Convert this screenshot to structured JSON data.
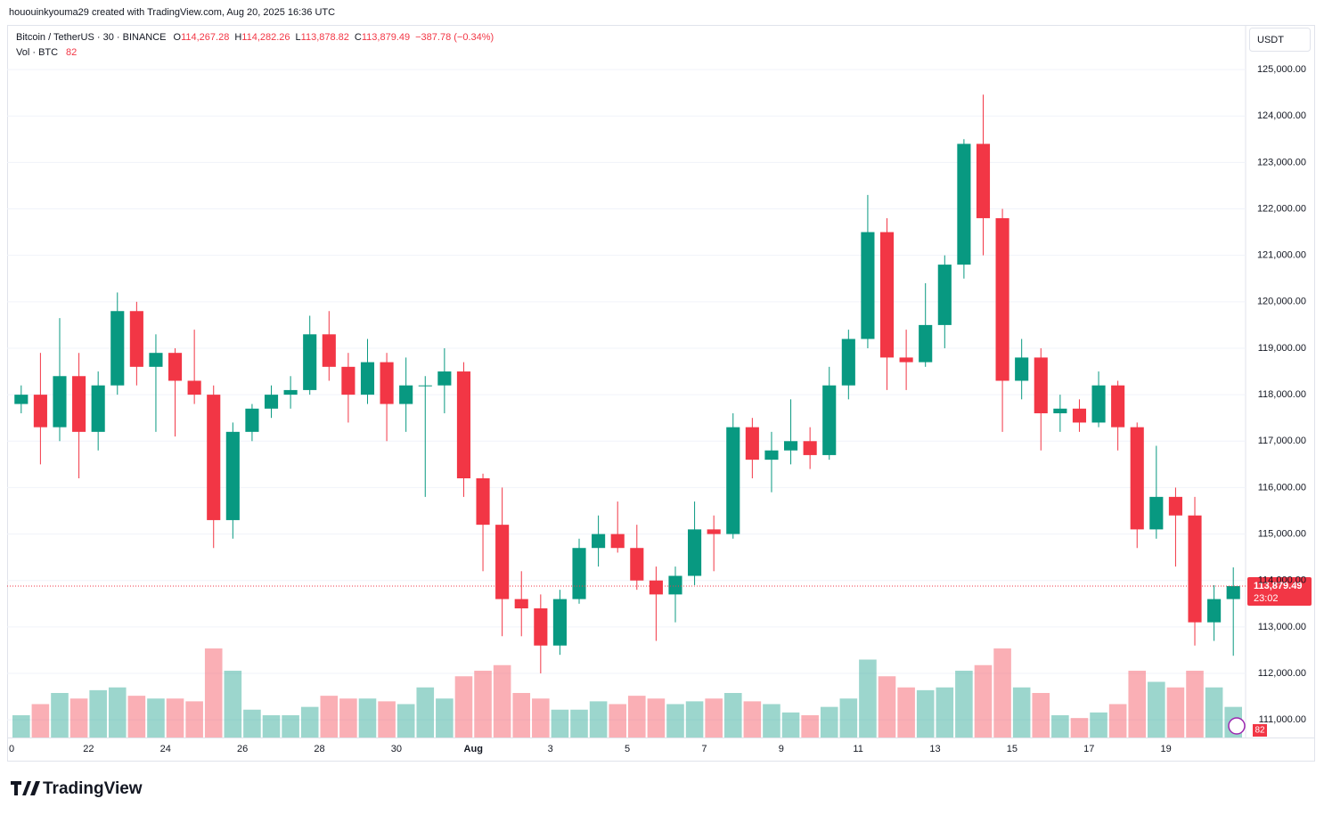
{
  "header": "hououinkyouma29 created with TradingView.com, Aug 20, 2025 16:36 UTC",
  "logo": "TradingView",
  "currency_button": "USDT",
  "chart_data": {
    "type": "candlestick",
    "title": "Bitcoin / TetherUS · 30 · BINANCE",
    "ohlc_legend": [
      {
        "key": "O",
        "text": "114,267.28"
      },
      {
        "key": "H",
        "text": "114,282.26"
      },
      {
        "key": "L",
        "text": "113,878.82"
      },
      {
        "key": "C",
        "text": "113,879.49"
      }
    ],
    "change": "−387.78 (−0.34%)",
    "volume_legend": "Vol · BTC",
    "volume_current": "82",
    "last_price": {
      "value": 113879.49,
      "label": "113,879.49"
    },
    "countdown": "23:02",
    "up_color": "#089981",
    "down_color": "#f23645",
    "grid": true,
    "categories": [
      "0",
      null,
      null,
      null,
      "22",
      null,
      null,
      null,
      "24",
      null,
      null,
      null,
      "26",
      null,
      null,
      null,
      "28",
      null,
      null,
      null,
      "30",
      null,
      null,
      null,
      "Aug",
      null,
      null,
      null,
      "3",
      null,
      null,
      null,
      "5",
      null,
      null,
      null,
      "7",
      null,
      null,
      null,
      "9",
      null,
      null,
      null,
      "11",
      null,
      null,
      null,
      "13",
      null,
      null,
      null,
      "15",
      null,
      null,
      null,
      "17",
      null,
      null,
      null,
      "19",
      null,
      null,
      null
    ],
    "open": [
      117800,
      118000,
      117300,
      118400,
      117200,
      118200,
      119800,
      118600,
      118900,
      118300,
      118000,
      115300,
      117200,
      117700,
      118000,
      118100,
      119300,
      118600,
      118000,
      118700,
      117800,
      118200,
      118200,
      118500,
      116200,
      115200,
      113600,
      113400,
      112600,
      113600,
      114700,
      115000,
      114700,
      114000,
      113700,
      114100,
      115100,
      115000,
      117300,
      116600,
      116800,
      117000,
      116700,
      118200,
      119200,
      121500,
      118800,
      118700,
      119500,
      120800,
      123400,
      121800,
      118300,
      118800,
      117600,
      117700,
      117400,
      118200,
      117300,
      115100,
      115800,
      115400,
      113100,
      113600
    ],
    "high": [
      118200,
      118900,
      119650,
      118900,
      118500,
      120200,
      120000,
      119300,
      119000,
      119400,
      118200,
      117400,
      117800,
      118200,
      118400,
      119700,
      119800,
      118900,
      119200,
      118900,
      118800,
      118400,
      119000,
      118700,
      116300,
      116000,
      114200,
      113700,
      113800,
      114900,
      115400,
      115700,
      115200,
      114300,
      114300,
      115700,
      115400,
      117600,
      117500,
      117200,
      117900,
      117300,
      118600,
      119400,
      122300,
      121800,
      119400,
      120400,
      121000,
      123500,
      124460,
      122000,
      119200,
      119000,
      118000,
      117900,
      118500,
      118300,
      117400,
      116900,
      116000,
      115800,
      113900,
      114282.26
    ],
    "low": [
      117600,
      116500,
      117000,
      116200,
      116800,
      118000,
      118200,
      117200,
      117100,
      117800,
      114700,
      114900,
      117000,
      117500,
      117700,
      118000,
      118300,
      117400,
      117800,
      117000,
      117200,
      115800,
      117600,
      115800,
      114200,
      112800,
      112800,
      112000,
      112400,
      113500,
      114300,
      114600,
      113800,
      112700,
      113100,
      113900,
      114200,
      114900,
      116200,
      115900,
      116500,
      116400,
      116600,
      117900,
      119000,
      118100,
      118100,
      118600,
      119000,
      120500,
      121000,
      117200,
      117900,
      116800,
      117200,
      117200,
      117300,
      116800,
      114700,
      114900,
      114300,
      112600,
      112700,
      112380
    ],
    "close": [
      118000,
      117300,
      118400,
      117200,
      118200,
      119800,
      118600,
      118900,
      118300,
      118000,
      115300,
      117200,
      117700,
      118000,
      118100,
      119300,
      118600,
      118000,
      118700,
      117800,
      118200,
      118200,
      118500,
      116200,
      115200,
      113600,
      113400,
      112600,
      113600,
      114700,
      115000,
      114700,
      114000,
      113700,
      114100,
      115100,
      115000,
      117300,
      116600,
      116800,
      117000,
      116700,
      118200,
      119200,
      121500,
      118800,
      118700,
      119500,
      120800,
      123400,
      121800,
      118300,
      118800,
      117600,
      117700,
      117400,
      118200,
      117300,
      115100,
      115800,
      115400,
      113100,
      113600,
      113879.49
    ],
    "volume": [
      4000,
      6000,
      8000,
      7000,
      8500,
      9000,
      7500,
      7000,
      7000,
      6500,
      16000,
      12000,
      5000,
      4000,
      4000,
      5500,
      7500,
      7000,
      7000,
      6500,
      6000,
      9000,
      7000,
      11000,
      12000,
      13000,
      8000,
      7000,
      5000,
      5000,
      6500,
      6000,
      7500,
      7000,
      6000,
      6500,
      7000,
      8000,
      6500,
      6000,
      4500,
      4000,
      5500,
      7000,
      14000,
      11000,
      9000,
      8500,
      9000,
      12000,
      13000,
      16000,
      9000,
      8000,
      4000,
      3500,
      4500,
      6000,
      12000,
      10000,
      9000,
      12000,
      9000,
      5500
    ],
    "ylim": [
      110620,
      125960
    ],
    "yticks": [
      {
        "value": 111000,
        "label": "111,000.00"
      },
      {
        "value": 112000,
        "label": "112,000.00"
      },
      {
        "value": 113000,
        "label": "113,000.00"
      },
      {
        "value": 114000,
        "label": "114,000.00"
      },
      {
        "value": 115000,
        "label": "115,000.00"
      },
      {
        "value": 116000,
        "label": "116,000.00"
      },
      {
        "value": 117000,
        "label": "117,000.00"
      },
      {
        "value": 118000,
        "label": "118,000.00"
      },
      {
        "value": 119000,
        "label": "119,000.00"
      },
      {
        "value": 120000,
        "label": "120,000.00"
      },
      {
        "value": 121000,
        "label": "121,000.00"
      },
      {
        "value": 122000,
        "label": "122,000.00"
      },
      {
        "value": 123000,
        "label": "123,000.00"
      },
      {
        "value": 124000,
        "label": "124,000.00"
      },
      {
        "value": 125000,
        "label": "125,000.00"
      }
    ]
  }
}
